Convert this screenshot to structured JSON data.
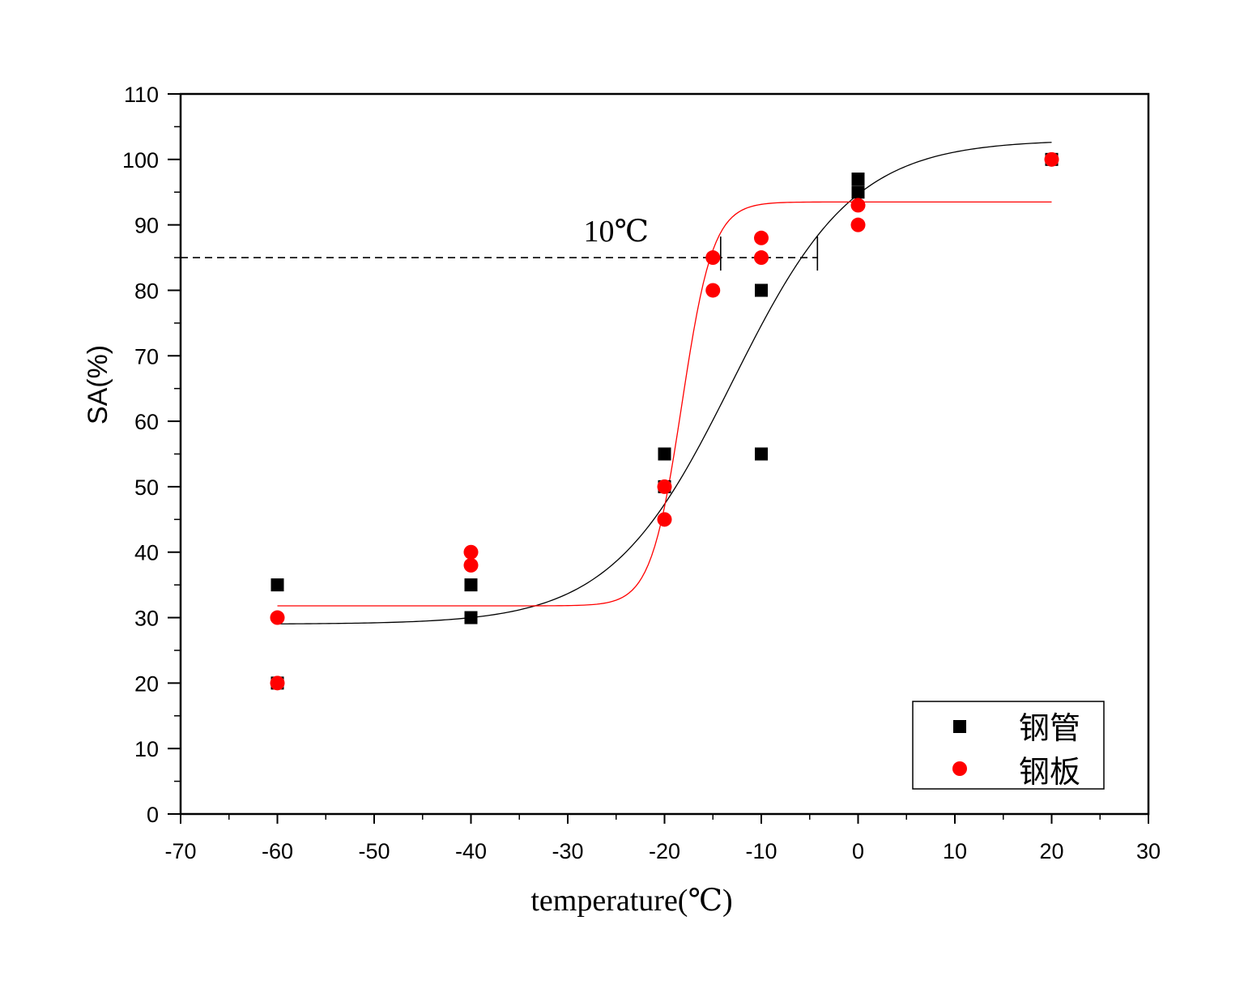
{
  "chart_data": {
    "type": "scatter",
    "xlabel": "temperature(℃)",
    "ylabel": "SA(%)",
    "xlim": [
      -70,
      30
    ],
    "ylim": [
      0,
      110
    ],
    "xticks": [
      -70,
      -60,
      -50,
      -40,
      -30,
      -20,
      -10,
      0,
      10,
      20,
      30
    ],
    "yticks": [
      0,
      10,
      20,
      30,
      40,
      50,
      60,
      70,
      80,
      90,
      100,
      110
    ],
    "grid": false,
    "legend_position": "bottom-right",
    "series": [
      {
        "name": "钢管",
        "marker": "square",
        "color": "#000000",
        "points": [
          [
            -60,
            35
          ],
          [
            -60,
            20
          ],
          [
            -40,
            35
          ],
          [
            -40,
            30
          ],
          [
            -20,
            55
          ],
          [
            -20,
            50
          ],
          [
            -10,
            80
          ],
          [
            -10,
            55
          ],
          [
            0,
            97
          ],
          [
            0,
            95
          ],
          [
            20,
            100
          ]
        ]
      },
      {
        "name": "钢板",
        "marker": "circle",
        "color": "#ff0000",
        "points": [
          [
            -60,
            30
          ],
          [
            -60,
            20
          ],
          [
            -40,
            40
          ],
          [
            -40,
            38
          ],
          [
            -20,
            50
          ],
          [
            -20,
            45
          ],
          [
            -15,
            85
          ],
          [
            -15,
            80
          ],
          [
            -10,
            88
          ],
          [
            -10,
            85
          ],
          [
            0,
            93
          ],
          [
            0,
            90
          ],
          [
            20,
            100
          ]
        ]
      }
    ],
    "fit_curves": [
      {
        "series": "钢管",
        "color": "#000000",
        "model": "boltzmann",
        "A1": 29,
        "A2": 103,
        "x0": -13,
        "dx": 6.3,
        "x_range": [
          -60,
          20
        ]
      },
      {
        "series": "钢板",
        "color": "#ff0000",
        "model": "boltzmann",
        "A1": 31.8,
        "A2": 93.5,
        "x0": -18.2,
        "dx": 1.6,
        "x_range": [
          -60,
          20
        ]
      }
    ],
    "reference_line": {
      "y": 85,
      "x_from": -70,
      "x_to": -4.2,
      "style": "dashed",
      "color": "#000000"
    },
    "markers": [
      {
        "x": -14.2,
        "y": 85
      },
      {
        "x": -4.2,
        "y": 85
      }
    ],
    "annotations": [
      {
        "text": "10℃",
        "x": -25,
        "y": 87.5
      }
    ]
  }
}
